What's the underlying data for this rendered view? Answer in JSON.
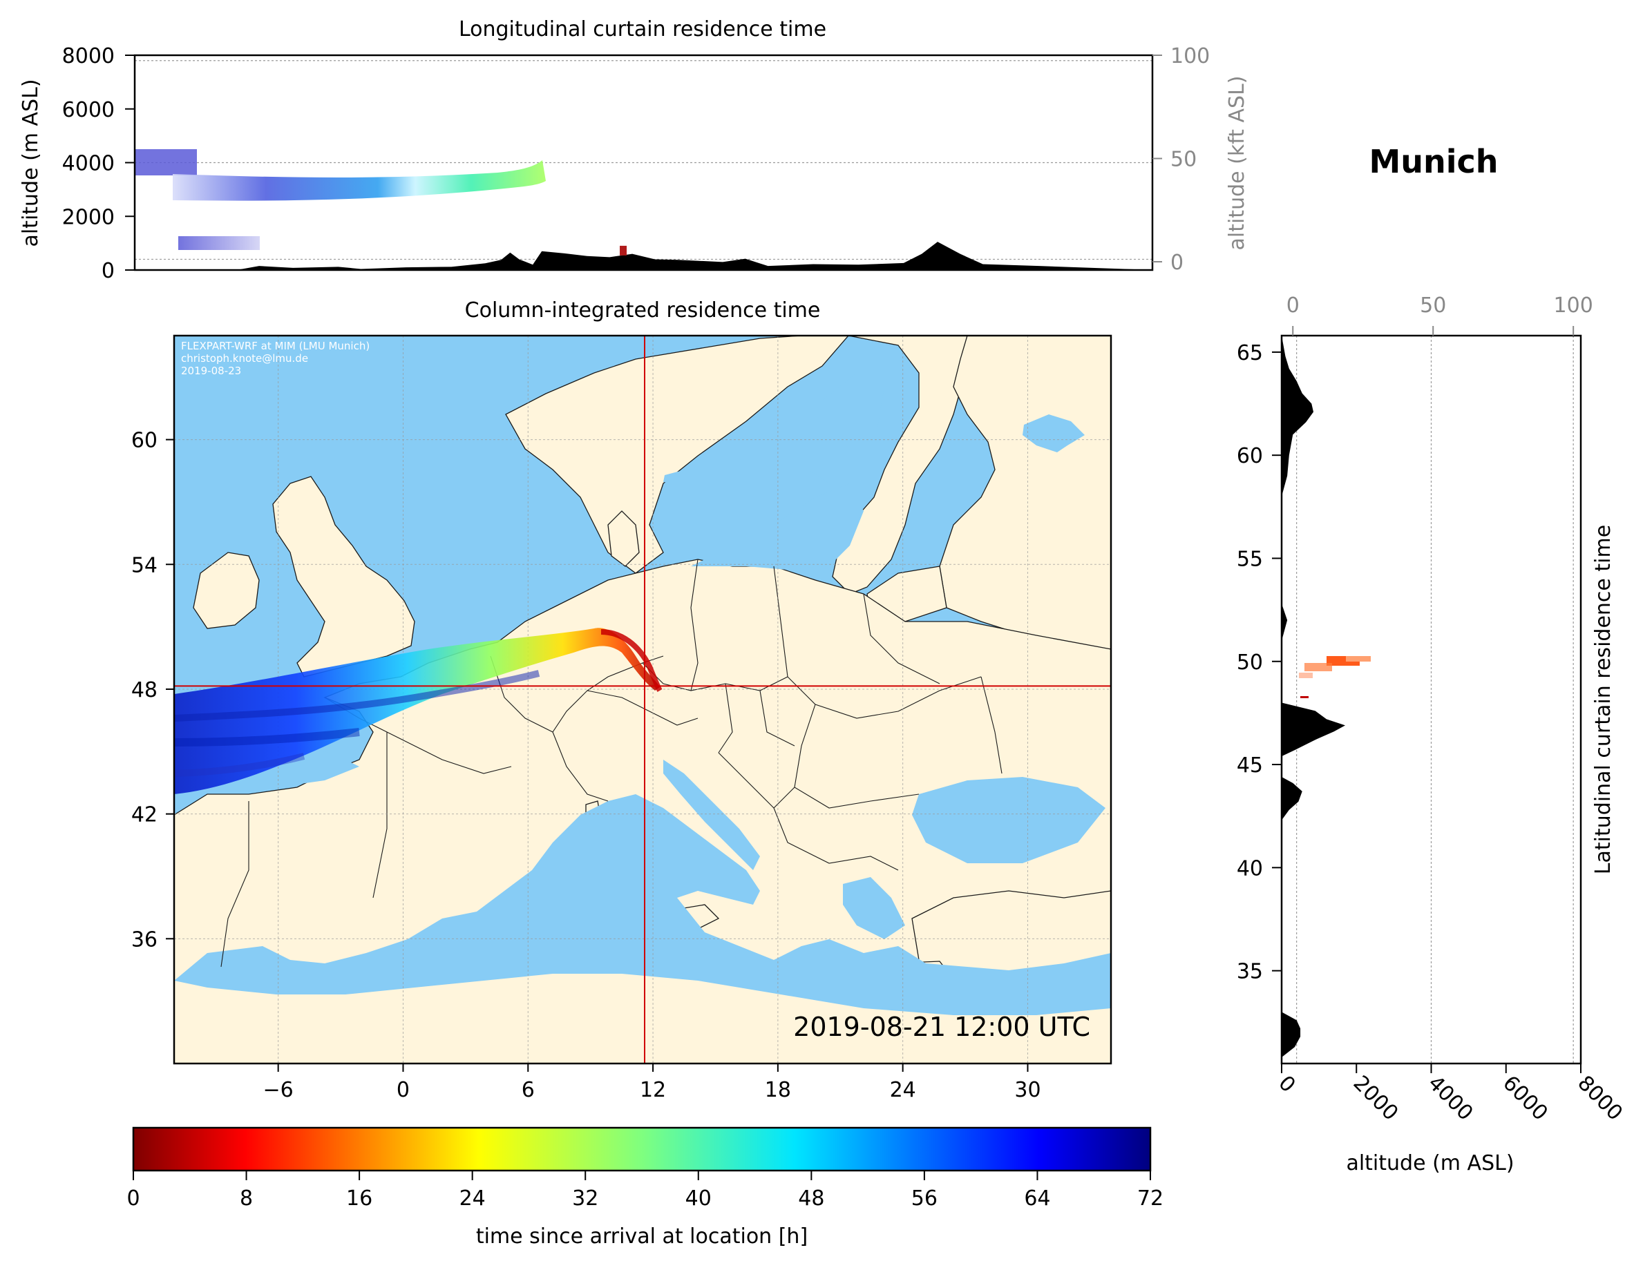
{
  "chart_data": [
    {
      "type": "area",
      "title": "Longitudinal curtain residence time",
      "ylabel": "altitude (m ASL)",
      "y2label": "altitude (kft ASL)",
      "ylim": [
        0,
        8000
      ],
      "y2lim": [
        -4,
        100
      ],
      "yticks": [
        0,
        2000,
        4000,
        6000,
        8000
      ],
      "y2ticks": [
        0,
        50,
        100
      ],
      "xlim": [
        -10,
        35
      ],
      "grid": "horizontal dotted at 400 m, 4000 m, 7800 m",
      "terrain_profile": {
        "lon": [
          -10,
          -5.5,
          -4.5,
          -3,
          -1,
          0,
          2,
          4,
          5.5,
          6.2,
          6.6,
          7,
          7.6,
          8,
          9,
          10,
          11,
          12,
          13,
          14,
          16,
          17,
          18,
          20,
          22,
          24,
          24.8,
          25.5,
          26.5,
          27.5,
          30,
          33,
          35
        ],
        "alt": [
          0,
          0,
          150,
          80,
          120,
          40,
          100,
          120,
          250,
          380,
          650,
          400,
          200,
          700,
          620,
          520,
          480,
          600,
          400,
          380,
          300,
          420,
          150,
          220,
          200,
          260,
          600,
          1050,
          600,
          220,
          150,
          60,
          0
        ]
      },
      "marker": {
        "lon": 11.6,
        "alt": 800,
        "color": "#b01a1a"
      }
    },
    {
      "type": "heatmap",
      "title": "Column-integrated residence time",
      "xlim": [
        -11,
        34
      ],
      "ylim": [
        30,
        65
      ],
      "xticks": [
        -6,
        0,
        6,
        12,
        18,
        24,
        30
      ],
      "yticks": [
        36,
        42,
        48,
        54,
        60
      ],
      "receptor": {
        "lon": 11.6,
        "lat": 48.15
      },
      "timestamp": "2019-08-21 12:00 UTC",
      "credit": [
        "FLEXPART-WRF at MIM (LMU Munich)",
        "christoph.knote@lmu.de",
        "2019-08-23"
      ],
      "colors": {
        "ocean": "#87ccf5",
        "land": "#fff5dc",
        "border": "#1a1a1a",
        "crosshair": "#d00000"
      }
    },
    {
      "type": "area",
      "title": "Latitudinal curtain residence time",
      "xlabel": "altitude (m ASL)",
      "xlim": [
        0,
        8000
      ],
      "xticks": [
        0,
        2000,
        4000,
        6000,
        8000
      ],
      "x2ticks": [
        0,
        50,
        100
      ],
      "ylim": [
        30.5,
        65.8
      ],
      "yticks": [
        35,
        40,
        45,
        50,
        55,
        60,
        65
      ],
      "terrain_profile": {
        "lat": [
          30.8,
          31.3,
          31.8,
          32.2,
          32.6,
          33,
          42.3,
          42.8,
          43.2,
          43.7,
          44.1,
          44.4,
          45.4,
          45.7,
          46.2,
          46.6,
          46.9,
          47.2,
          47.6,
          48,
          51,
          52,
          52.8,
          58,
          59,
          60,
          61,
          61.6,
          62.1,
          62.5,
          63,
          63.6,
          64.2,
          64.8,
          65.8
        ],
        "alt": [
          0,
          350,
          500,
          500,
          400,
          0,
          0,
          200,
          450,
          550,
          300,
          0,
          0,
          350,
          900,
          1400,
          1700,
          1200,
          900,
          0,
          0,
          150,
          0,
          0,
          150,
          200,
          300,
          650,
          850,
          800,
          550,
          400,
          200,
          100,
          0
        ]
      }
    },
    {
      "type": "colorbar",
      "xlabel": "time since arrival at location [h]",
      "range": [
        0,
        72
      ],
      "ticks": [
        0,
        8,
        16,
        24,
        32,
        40,
        48,
        56,
        64,
        72
      ],
      "colormap": "jet_r"
    }
  ],
  "location_label": "Munich"
}
